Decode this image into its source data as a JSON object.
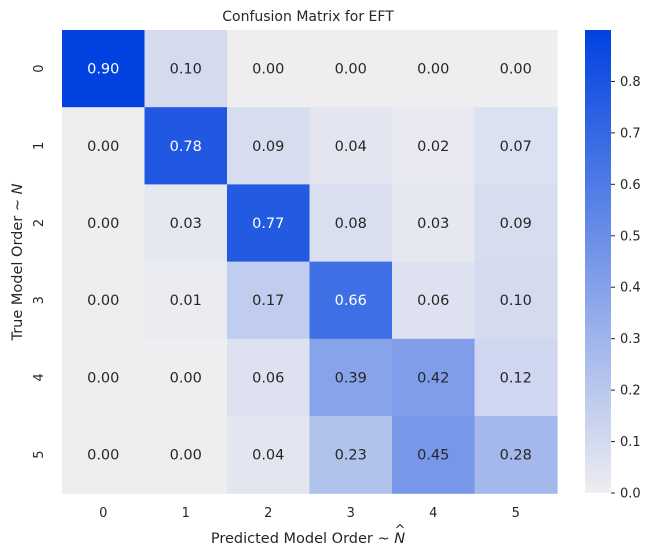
{
  "chart_data": {
    "type": "heatmap",
    "title": "Confusion Matrix for EFT",
    "xlabel": "Predicted Model Order ~",
    "xlabel_symbol": "N",
    "ylabel": "True Model Order ~",
    "ylabel_symbol": "N",
    "x_categories": [
      "0",
      "1",
      "2",
      "3",
      "4",
      "5"
    ],
    "y_categories": [
      "0",
      "1",
      "2",
      "3",
      "4",
      "5"
    ],
    "values": [
      [
        0.9,
        0.1,
        0.0,
        0.0,
        0.0,
        0.0
      ],
      [
        0.0,
        0.78,
        0.09,
        0.04,
        0.02,
        0.07
      ],
      [
        0.0,
        0.03,
        0.77,
        0.08,
        0.03,
        0.09
      ],
      [
        0.0,
        0.01,
        0.17,
        0.66,
        0.06,
        0.1
      ],
      [
        0.0,
        0.0,
        0.06,
        0.39,
        0.42,
        0.12
      ],
      [
        0.0,
        0.0,
        0.04,
        0.23,
        0.45,
        0.28
      ]
    ],
    "value_format": "0.00",
    "vmin": 0.0,
    "vmax": 0.9,
    "colorbar_ticks": [
      "0.0",
      "0.1",
      "0.2",
      "0.3",
      "0.4",
      "0.5",
      "0.6",
      "0.7",
      "0.8"
    ],
    "colormap": {
      "low": "#eeeef1",
      "high": "#0041e0"
    },
    "annotation_colors": {
      "dark_bg": "#ffffff",
      "light_bg": "#262626"
    },
    "background": "#ffffff"
  }
}
